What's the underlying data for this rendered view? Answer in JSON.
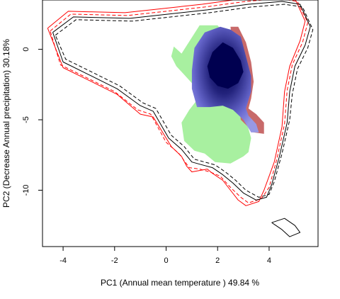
{
  "chart_data": {
    "type": "contour",
    "title": "",
    "xlabel": "PC1 (Annual mean temperature ) 49.84 %",
    "ylabel": "PC2 (Decrease Annual precipitation) 30.18%",
    "xlim": [
      -4.8,
      5.9
    ],
    "ylim": [
      -14.0,
      3.5
    ],
    "x_ticks": [
      -4,
      -2,
      0,
      2,
      4
    ],
    "y_ticks": [
      0,
      -5,
      -10
    ],
    "grid": false,
    "colors": {
      "niche_a": "#ff0000",
      "niche_b": "#000000",
      "only_a_area": "#a8f0a0",
      "only_b_area": "#c86a6a",
      "overlap_low": "#9090e0",
      "overlap_high": "#000050"
    },
    "series": [
      {
        "style": "solid",
        "color": "#ff0000",
        "x": [
          -4.6,
          -3.8,
          -1.6,
          1.4,
          3.0,
          4.3,
          5.0,
          5.4,
          5.2,
          4.8,
          4.6,
          4.5,
          4.2,
          3.8,
          3.6,
          3.1,
          2.8,
          2.5,
          2.2,
          1.8,
          1.6,
          1.3,
          1.0,
          0.8,
          0.6,
          0.2,
          -0.5,
          -1.0,
          -1.9,
          -3.0,
          -4.0,
          -4.6
        ],
        "y": [
          1.5,
          2.7,
          2.6,
          3.2,
          3.6,
          3.8,
          3.6,
          2.0,
          0.6,
          -1.2,
          -3.0,
          -5.5,
          -8.0,
          -10.0,
          -10.8,
          -11.1,
          -10.7,
          -10.0,
          -9.3,
          -8.8,
          -8.5,
          -8.6,
          -8.7,
          -8.3,
          -7.6,
          -6.9,
          -4.8,
          -4.6,
          -3.2,
          -2.2,
          -1.3,
          1.5
        ]
      },
      {
        "style": "dashed",
        "color": "#ff0000",
        "x": [
          -4.5,
          -3.7,
          -1.5,
          1.5,
          3.1,
          4.4,
          5.1,
          5.5,
          5.3,
          4.9,
          4.7,
          4.6,
          4.3,
          4.0,
          3.7,
          3.2,
          2.9,
          2.5,
          2.1,
          1.7,
          1.3,
          0.9,
          0.5,
          0.0,
          -0.6,
          -1.1,
          -2.0,
          -3.1,
          -4.1,
          -4.5
        ],
        "y": [
          1.3,
          2.5,
          2.4,
          3.0,
          3.4,
          3.6,
          3.4,
          1.9,
          0.5,
          -1.1,
          -2.9,
          -5.3,
          -7.8,
          -9.8,
          -10.6,
          -10.9,
          -10.5,
          -9.8,
          -9.0,
          -8.7,
          -8.5,
          -8.4,
          -7.4,
          -6.6,
          -4.6,
          -4.3,
          -3.0,
          -2.0,
          -1.1,
          1.3
        ]
      },
      {
        "style": "solid",
        "color": "#000000",
        "x": [
          -4.4,
          -3.6,
          -1.4,
          1.6,
          3.2,
          4.5,
          5.2,
          5.6,
          5.4,
          5.0,
          4.8,
          4.7,
          4.4,
          4.1,
          3.9,
          3.5,
          3.0,
          2.6,
          2.2,
          1.8,
          1.4,
          1.0,
          0.6,
          0.1,
          -0.5,
          -1.0,
          -1.9,
          -3.0,
          -4.0,
          -4.4
        ],
        "y": [
          1.2,
          2.3,
          2.2,
          2.8,
          3.2,
          3.4,
          3.2,
          1.6,
          0.3,
          -1.2,
          -3.0,
          -5.2,
          -7.6,
          -9.6,
          -10.5,
          -10.7,
          -10.2,
          -9.5,
          -8.9,
          -8.4,
          -8.2,
          -8.0,
          -7.1,
          -6.3,
          -4.4,
          -4.0,
          -2.8,
          -1.8,
          -0.9,
          1.2
        ]
      },
      {
        "style": "dashed",
        "color": "#000000",
        "x": [
          -4.3,
          -3.5,
          -1.3,
          1.7,
          3.3,
          4.6,
          5.3,
          5.7,
          5.5,
          5.1,
          4.9,
          4.8,
          4.5,
          4.2,
          4.0,
          3.6,
          3.1,
          2.7,
          2.3,
          1.9,
          1.5,
          1.1,
          0.7,
          0.2,
          -0.4,
          -0.9,
          -1.8,
          -2.9,
          -3.9,
          -4.3
        ],
        "y": [
          1.0,
          2.1,
          2.0,
          2.6,
          3.0,
          3.2,
          3.0,
          1.4,
          0.1,
          -1.4,
          -3.2,
          -5.0,
          -7.4,
          -9.4,
          -10.3,
          -10.5,
          -10.0,
          -9.3,
          -8.7,
          -8.2,
          -8.0,
          -7.8,
          -6.9,
          -6.1,
          -4.2,
          -3.8,
          -2.6,
          -1.6,
          -0.7,
          1.0
        ]
      },
      {
        "style": "solid",
        "color": "#000000",
        "x": [
          4.1,
          4.6,
          5.0,
          5.2,
          4.8,
          4.5,
          4.1
        ],
        "y": [
          -12.3,
          -12.0,
          -12.5,
          -13.0,
          -13.3,
          -12.8,
          -12.3
        ]
      }
    ],
    "filled_regions": [
      {
        "layer": "only_a_area",
        "x": [
          0.6,
          1.3,
          2.0,
          2.4,
          2.6,
          2.8,
          3.1,
          3.3,
          3.2,
          3.0,
          2.5,
          1.9,
          1.5,
          1.1,
          0.7,
          0.6,
          0.9,
          1.2,
          1.1,
          0.7,
          0.4,
          0.2,
          0.3,
          0.6
        ],
        "y": [
          -0.3,
          1.7,
          1.7,
          0.8,
          -1.0,
          -3.0,
          -5.0,
          -6.3,
          -7.3,
          -7.6,
          -8.1,
          -8.0,
          -7.4,
          -7.2,
          -6.5,
          -5.2,
          -4.3,
          -3.6,
          -2.6,
          -1.8,
          -1.2,
          -0.5,
          0.2,
          -0.3
        ]
      },
      {
        "layer": "only_b_area",
        "x": [
          2.1,
          2.8,
          3.1,
          3.3,
          3.4,
          3.3,
          3.2,
          3.5,
          3.8,
          3.8,
          3.4,
          2.9,
          2.5
        ],
        "y": [
          1.6,
          1.6,
          0.5,
          -0.9,
          -2.3,
          -3.5,
          -4.2,
          -4.6,
          -5.2,
          -6.0,
          -5.9,
          -5.0,
          1.6
        ]
      },
      {
        "layer": "overlap_low",
        "x": [
          2.1,
          2.5,
          2.9,
          3.1,
          3.3,
          3.3,
          3.2,
          3.1,
          3.2,
          3.5,
          3.6,
          3.3,
          3.0,
          2.6,
          2.2,
          1.7,
          1.2,
          1.0,
          1.0,
          1.1,
          1.5
        ],
        "y": [
          1.6,
          1.4,
          0.9,
          -0.5,
          -1.9,
          -3.0,
          -3.6,
          -4.2,
          -4.7,
          -5.3,
          -5.9,
          -5.9,
          -5.0,
          -4.3,
          -4.0,
          -4.1,
          -4.1,
          -2.8,
          -1.5,
          0.1,
          1.2
        ]
      },
      {
        "layer": "overlap_high",
        "x": [
          2.2,
          2.6,
          2.9,
          3.0,
          2.8,
          2.4,
          2.0,
          1.7,
          1.6,
          1.8
        ],
        "y": [
          0.5,
          0.1,
          -0.8,
          -1.6,
          -2.4,
          -2.8,
          -2.6,
          -2.0,
          -1.2,
          -0.2
        ]
      }
    ]
  }
}
